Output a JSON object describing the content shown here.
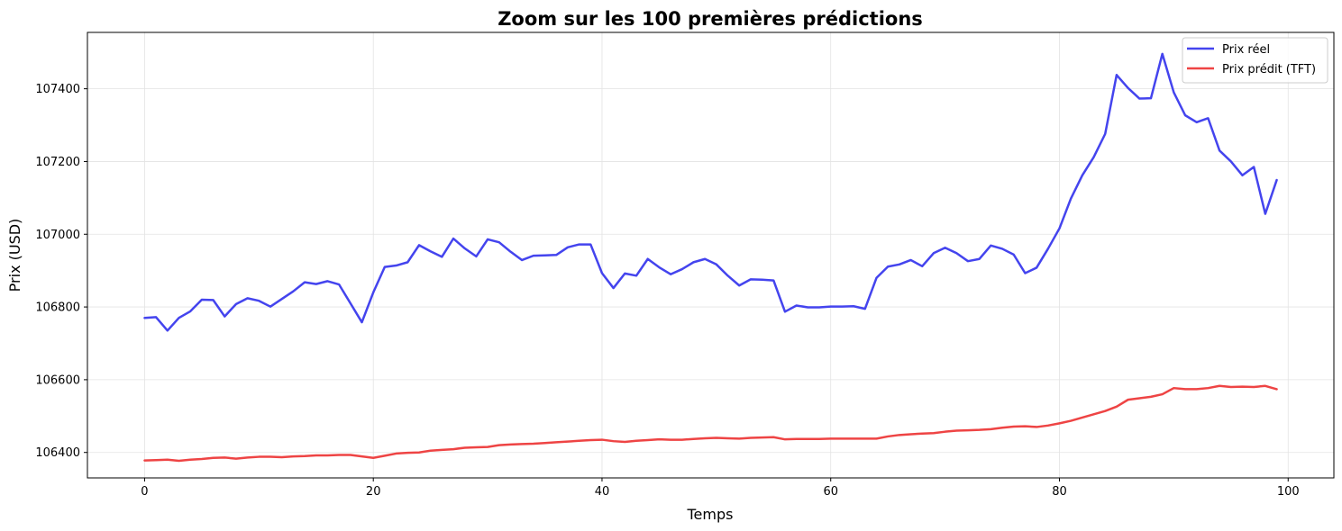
{
  "chart_data": {
    "type": "line",
    "title": "Zoom sur les 100 premières prédictions",
    "xlabel": "Temps",
    "ylabel": "Prix (USD)",
    "xlim": [
      -5,
      104
    ],
    "ylim": [
      106330,
      107555
    ],
    "xticks": [
      0,
      20,
      40,
      60,
      80,
      100
    ],
    "yticks": [
      106400,
      106600,
      106800,
      107000,
      107200,
      107400
    ],
    "grid": true,
    "legend_position": "top-right",
    "series": [
      {
        "name": "Prix réel",
        "color": "#4444ee",
        "values": [
          106770,
          106772,
          106735,
          106770,
          106788,
          106820,
          106819,
          106774,
          106808,
          106824,
          106817,
          106801,
          106822,
          106843,
          106868,
          106863,
          106871,
          106862,
          106810,
          106758,
          106840,
          106910,
          106914,
          106923,
          106970,
          106953,
          106938,
          106988,
          106961,
          106939,
          106986,
          106978,
          106952,
          106929,
          106941,
          106942,
          106943,
          106964,
          106972,
          106972,
          106893,
          106852,
          106892,
          106886,
          106932,
          106909,
          106890,
          106904,
          106923,
          106932,
          106917,
          106886,
          106859,
          106876,
          106875,
          106873,
          106787,
          106804,
          106799,
          106799,
          106801,
          106801,
          106802,
          106795,
          106880,
          106911,
          106917,
          106929,
          106912,
          106948,
          106963,
          106948,
          106926,
          106932,
          106969,
          106960,
          106944,
          106893,
          106908,
          106960,
          107016,
          107098,
          107162,
          107212,
          107276,
          107438,
          107402,
          107373,
          107374,
          107496,
          107390,
          107327,
          107308,
          107319,
          107230,
          107200,
          107162,
          107185,
          107056,
          107149
        ]
      },
      {
        "name": "Prix prédit (TFT)",
        "color": "#ee4444",
        "values": [
          106378,
          106379,
          106380,
          106377,
          106380,
          106382,
          106385,
          106386,
          106383,
          106386,
          106388,
          106388,
          106387,
          106389,
          106390,
          106392,
          106392,
          106393,
          106393,
          106389,
          106385,
          106391,
          106397,
          106399,
          106400,
          106405,
          106407,
          106409,
          106413,
          106414,
          106415,
          106420,
          106422,
          106423,
          106424,
          106426,
          106428,
          106430,
          106432,
          106434,
          106435,
          106431,
          106429,
          106432,
          106434,
          106436,
          106435,
          106435,
          106437,
          106439,
          106440,
          106439,
          106438,
          106440,
          106441,
          106442,
          106436,
          106437,
          106437,
          106437,
          106438,
          106438,
          106438,
          106438,
          106438,
          106444,
          106448,
          106450,
          106452,
          106453,
          106457,
          106460,
          106461,
          106462,
          106464,
          106468,
          106471,
          106472,
          106470,
          106474,
          106480,
          106487,
          106496,
          106505,
          106514,
          106526,
          106545,
          106549,
          106553,
          106560,
          106577,
          106574,
          106574,
          106577,
          106583,
          106580,
          106581,
          106580,
          106583,
          106574
        ]
      }
    ]
  }
}
